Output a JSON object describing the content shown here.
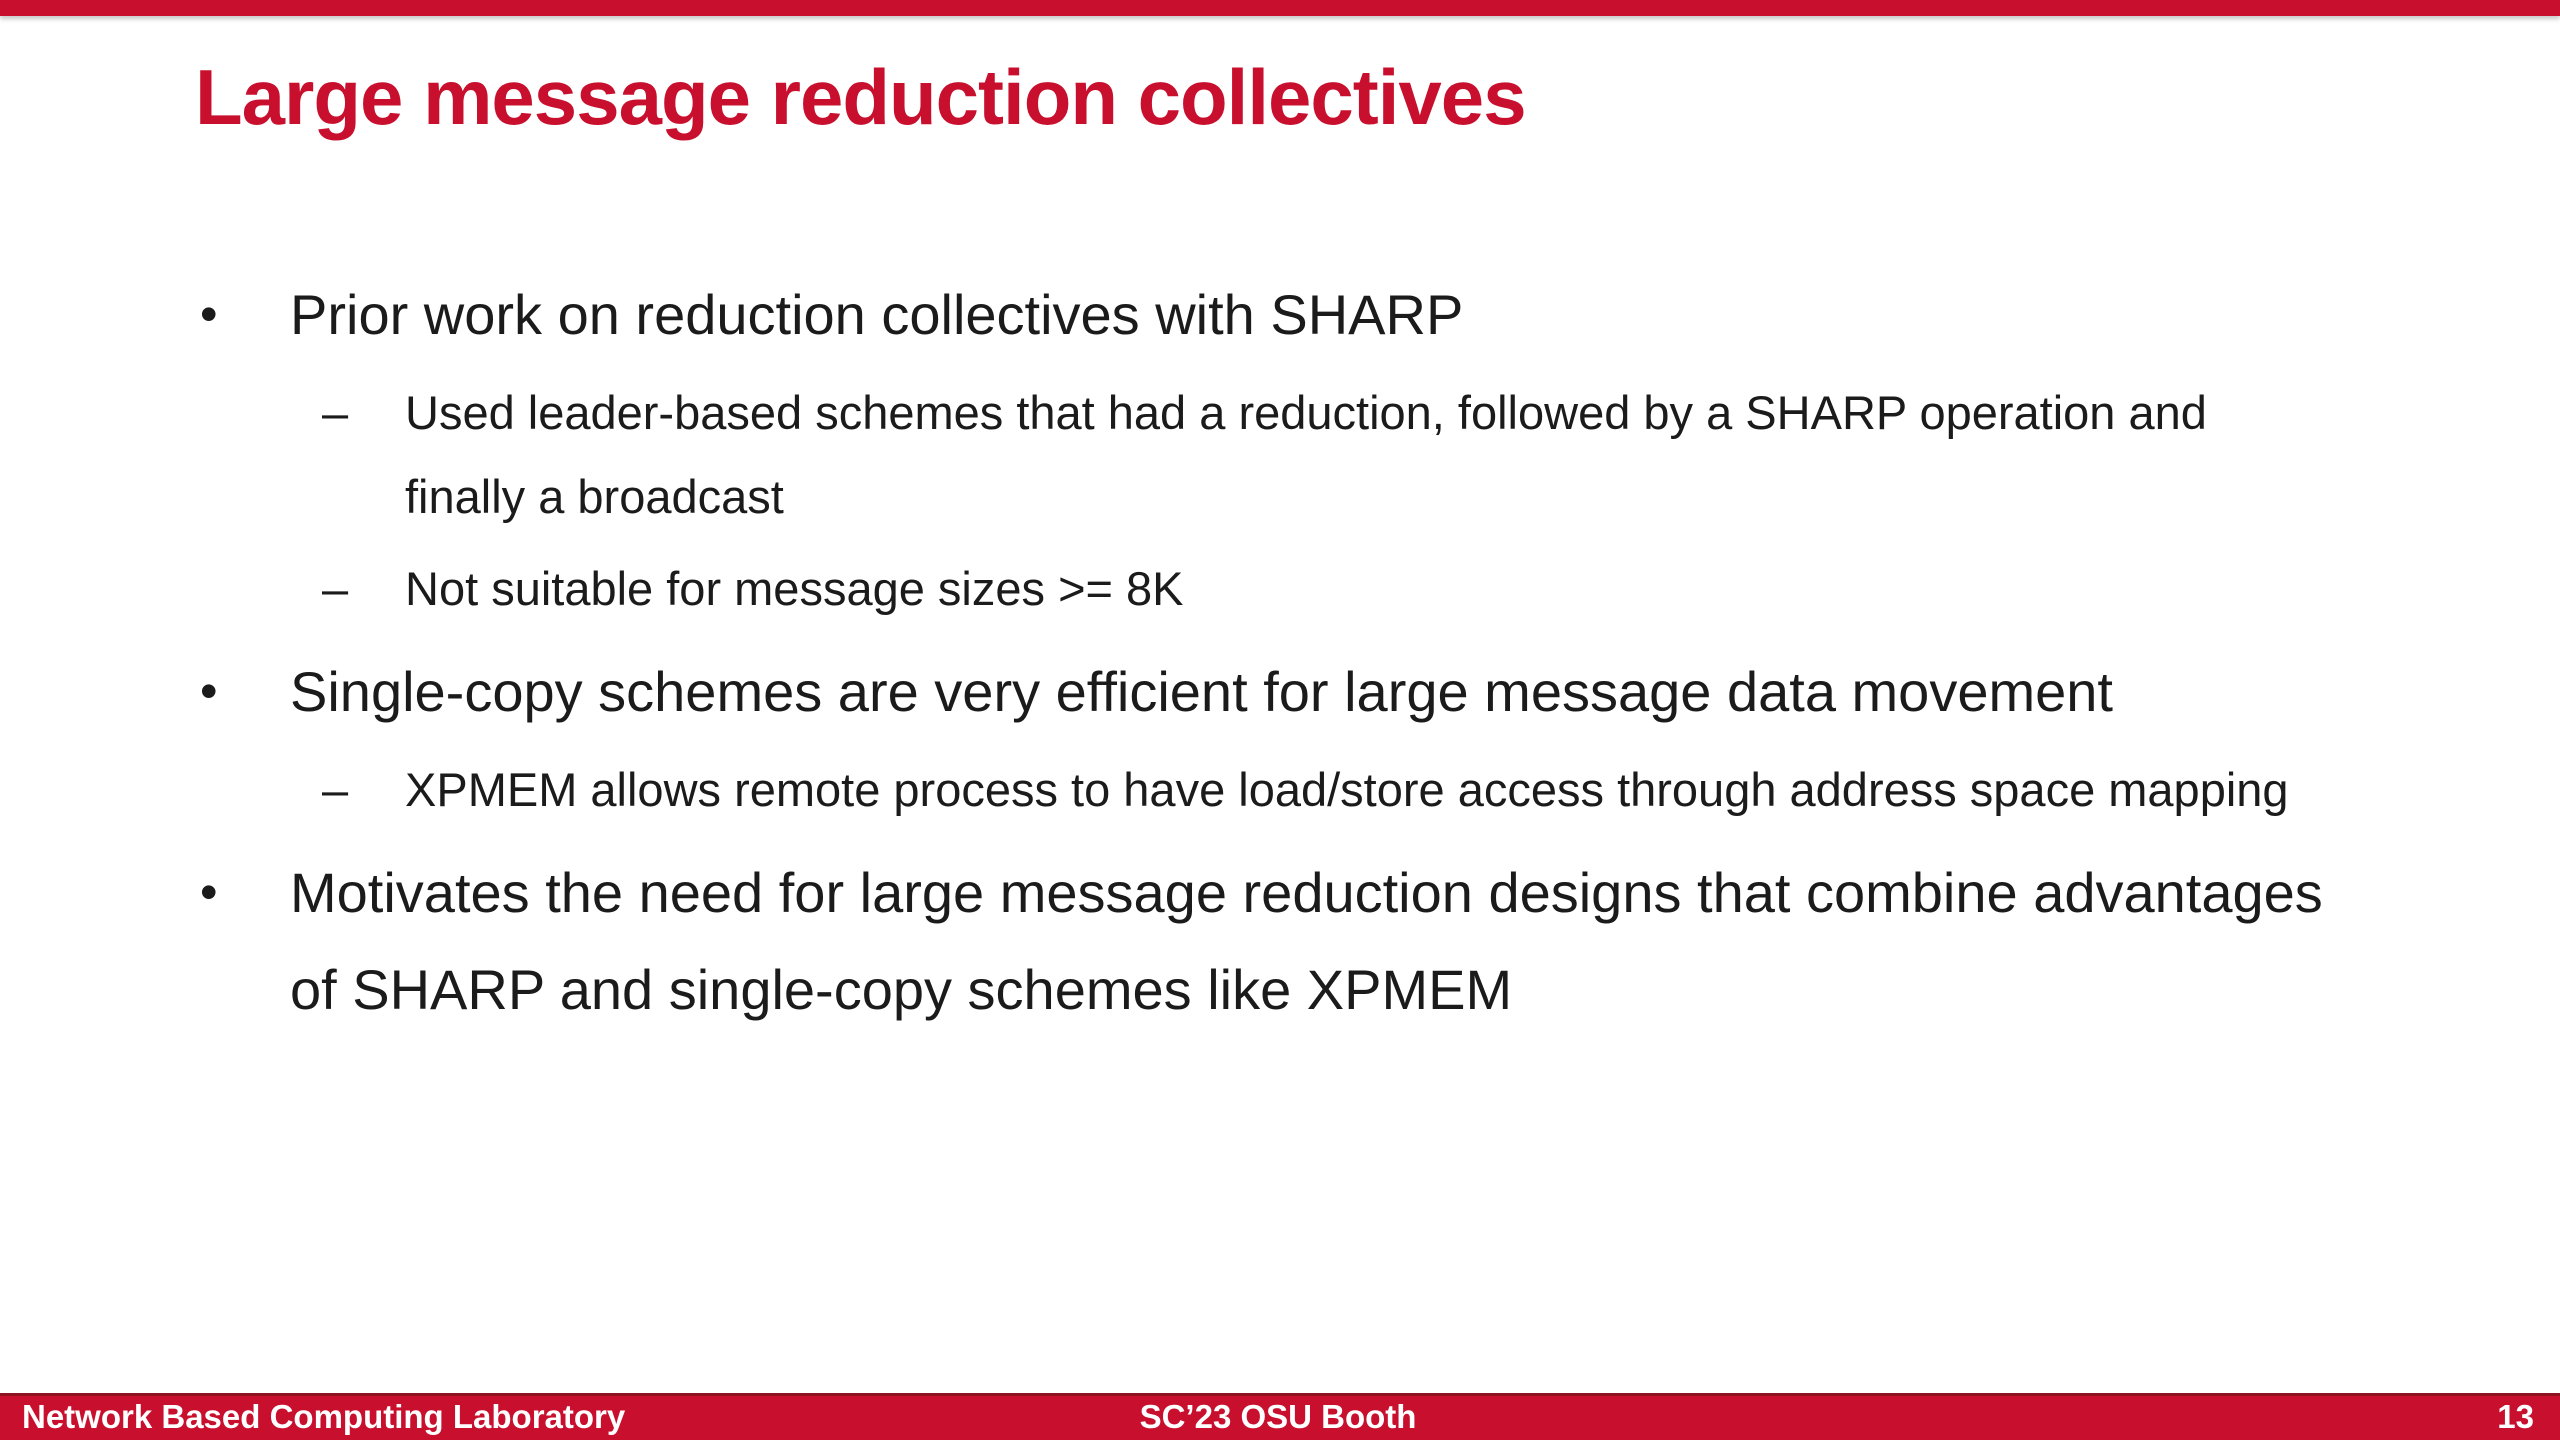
{
  "colors": {
    "accent_red": "#C8102E",
    "dark_red": "#8E1220",
    "text": "#1B1B1B",
    "footer_text": "#FFFFFF",
    "background": "#FFFFFF"
  },
  "slide": {
    "title": "Large message reduction collectives",
    "bullets": [
      {
        "level": 1,
        "marker": "•",
        "text": "Prior work on reduction collectives with SHARP"
      },
      {
        "level": 2,
        "marker": "–",
        "text": "Used leader-based schemes that had a reduction, followed by a SHARP operation and\nfinally a broadcast"
      },
      {
        "level": 2,
        "marker": "–",
        "text": "Not suitable for message sizes >= 8K"
      },
      {
        "level": 1,
        "marker": "•",
        "text": "Single-copy schemes are very efficient for large message data movement"
      },
      {
        "level": 2,
        "marker": "–",
        "text": "XPMEM allows remote process to have load/store access through address space mapping"
      },
      {
        "level": 1,
        "marker": "•",
        "text": "Motivates the need for large message reduction designs that combine advantages\nof SHARP and single-copy schemes like XPMEM"
      }
    ]
  },
  "footer": {
    "organization": "Network Based Computing Laboratory",
    "event": "SC’23 OSU Booth",
    "page_number": "13"
  }
}
